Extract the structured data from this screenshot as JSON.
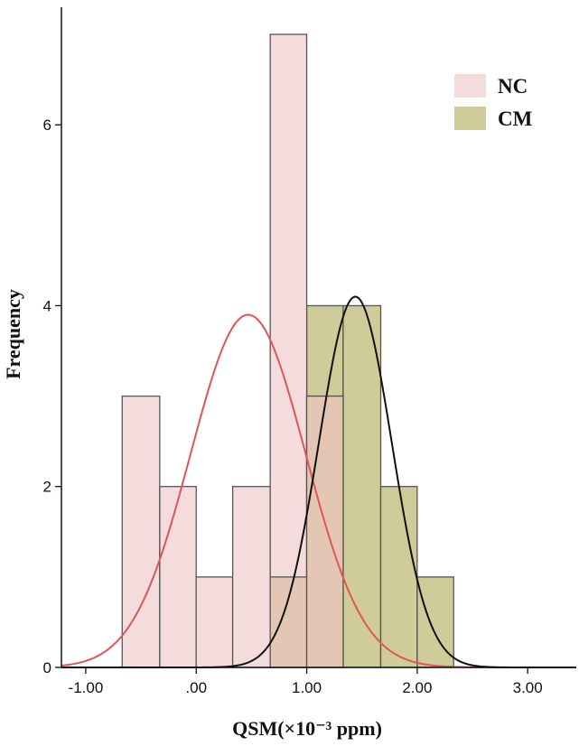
{
  "chart_data": {
    "type": "bar",
    "xlabel": "QSM(×10⁻³ ppm)",
    "ylabel": "Frequency",
    "xlim": [
      -1.22,
      3.44
    ],
    "ylim": [
      0,
      7.3
    ],
    "x_ticks": [
      -1.0,
      0.0,
      1.0,
      2.0,
      3.0
    ],
    "x_tick_labels": [
      "-1.00",
      ".00",
      "1.00",
      "2.00",
      "3.00"
    ],
    "y_ticks": [
      0,
      2,
      4,
      6
    ],
    "y_tick_labels": [
      "0",
      "2",
      "4",
      "6"
    ],
    "grid": false,
    "legend_position": "top-right",
    "series": [
      {
        "name": "NC",
        "kind": "histogram",
        "fill": "#f4dcdc",
        "stroke": "#555555",
        "bins": [
          {
            "x0": -0.67,
            "x1": -0.33,
            "count": 3
          },
          {
            "x0": -0.33,
            "x1": 0.0,
            "count": 2
          },
          {
            "x0": 0.0,
            "x1": 0.33,
            "count": 1
          },
          {
            "x0": 0.33,
            "x1": 0.67,
            "count": 2
          },
          {
            "x0": 0.67,
            "x1": 1.0,
            "count": 7
          },
          {
            "x0": 1.0,
            "x1": 1.33,
            "count": 3
          }
        ],
        "curve": {
          "type": "normal",
          "mean": 0.47,
          "sd": 0.52,
          "peak": 3.9,
          "color": "#e05555"
        }
      },
      {
        "name": "CM",
        "kind": "histogram",
        "fill": "#cfcc9a",
        "stroke": "#555555",
        "bins": [
          {
            "x0": 0.67,
            "x1": 1.0,
            "count": 1
          },
          {
            "x0": 1.0,
            "x1": 1.33,
            "count": 4
          },
          {
            "x0": 1.33,
            "x1": 1.67,
            "count": 4
          },
          {
            "x0": 1.67,
            "x1": 2.0,
            "count": 2
          },
          {
            "x0": 2.0,
            "x1": 2.33,
            "count": 1
          }
        ],
        "curve": {
          "type": "normal",
          "mean": 1.44,
          "sd": 0.33,
          "peak": 4.1,
          "color": "#111111"
        }
      }
    ],
    "overlap_fill": "#e3c6b4"
  }
}
